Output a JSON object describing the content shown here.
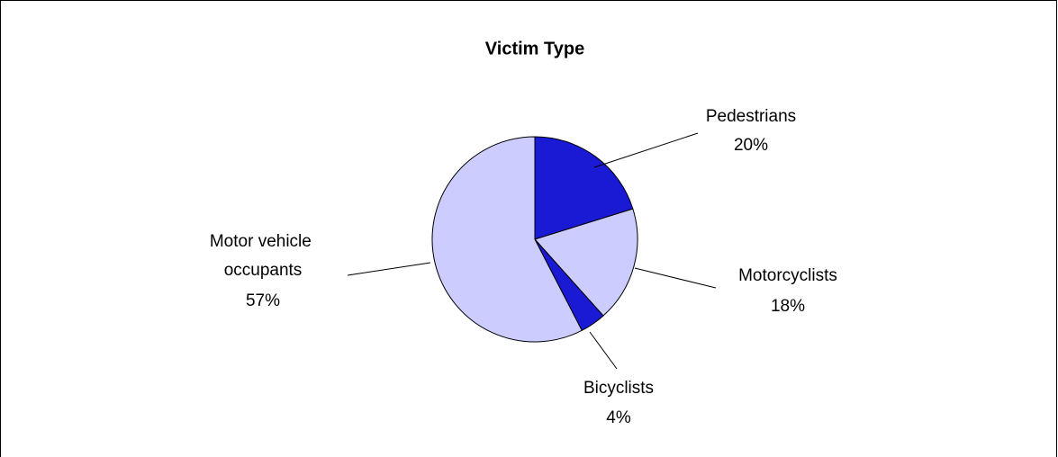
{
  "chart_data": {
    "type": "pie",
    "title": "Victim Type",
    "categories": [
      "Pedestrians",
      "Motorcyclists",
      "Bicyclists",
      "Motor vehicle occupants"
    ],
    "values": [
      20,
      18,
      4,
      57
    ],
    "value_labels": [
      "20%",
      "18%",
      "4%",
      "57%"
    ],
    "colors": [
      "#1a1ad4",
      "#ccccff",
      "#1a1ad4",
      "#ccccff"
    ]
  }
}
